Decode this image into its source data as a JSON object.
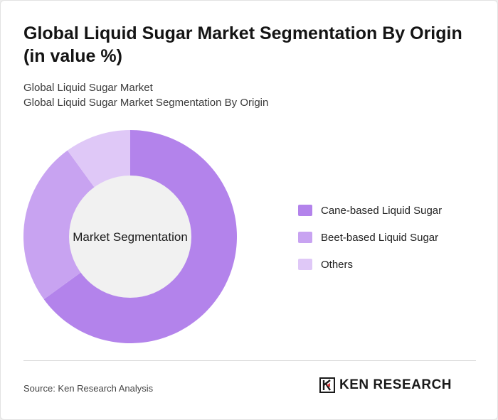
{
  "title": "Global Liquid Sugar Market Segmentation By Origin (in value %)",
  "subtitle_1": "Global Liquid Sugar Market",
  "subtitle_2": "Global Liquid Sugar Market Segmentation By Origin",
  "center_label": "Market Segmentation",
  "source": "Source: Ken Research Analysis",
  "logo_text": "KEN RESEARCH",
  "colors": {
    "cane": "#b383eb",
    "beet": "#c8a3f1",
    "others": "#dfc8f7",
    "hole": "#f1f1f1"
  },
  "chart_data": {
    "type": "pie",
    "donut": true,
    "categories": [
      "Cane-based Liquid Sugar",
      "Beet-based Liquid Sugar",
      "Others"
    ],
    "values": [
      65,
      25,
      10
    ],
    "legend_position": "right"
  }
}
